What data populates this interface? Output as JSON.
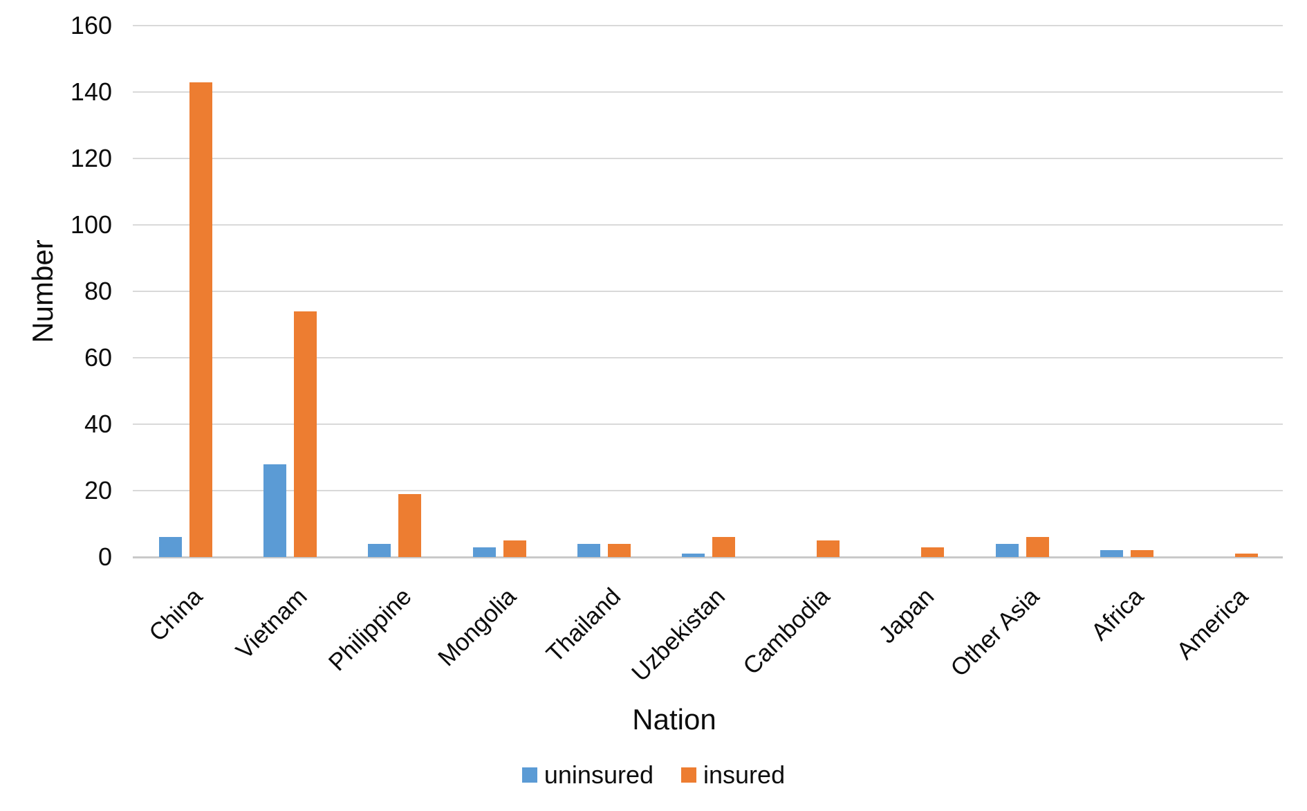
{
  "chart_data": {
    "type": "bar",
    "title": "",
    "xlabel": "Nation",
    "ylabel": "Number",
    "categories": [
      "China",
      "Vietnam",
      "Philippine",
      "Mongolia",
      "Thailand",
      "Uzbekistan",
      "Cambodia",
      "Japan",
      "Other Asia",
      "Africa",
      "America"
    ],
    "series": [
      {
        "name": "uninsured",
        "color": "#5B9BD5",
        "values": [
          6,
          28,
          4,
          3,
          4,
          1,
          0,
          0,
          4,
          2,
          0
        ]
      },
      {
        "name": "insured",
        "color": "#ED7D31",
        "values": [
          143,
          74,
          19,
          5,
          4,
          6,
          5,
          3,
          6,
          2,
          1
        ]
      }
    ],
    "ylim": [
      0,
      160
    ],
    "ytick_step": 20,
    "yticks": [
      0,
      20,
      40,
      60,
      80,
      100,
      120,
      140,
      160
    ],
    "grid": "horizontal",
    "legend_position": "bottom"
  },
  "colors": {
    "gridline": "#D9D9D9",
    "axis_line": "#C9C9C9",
    "text": "#0D0D0D",
    "background": "#FFFFFF"
  }
}
